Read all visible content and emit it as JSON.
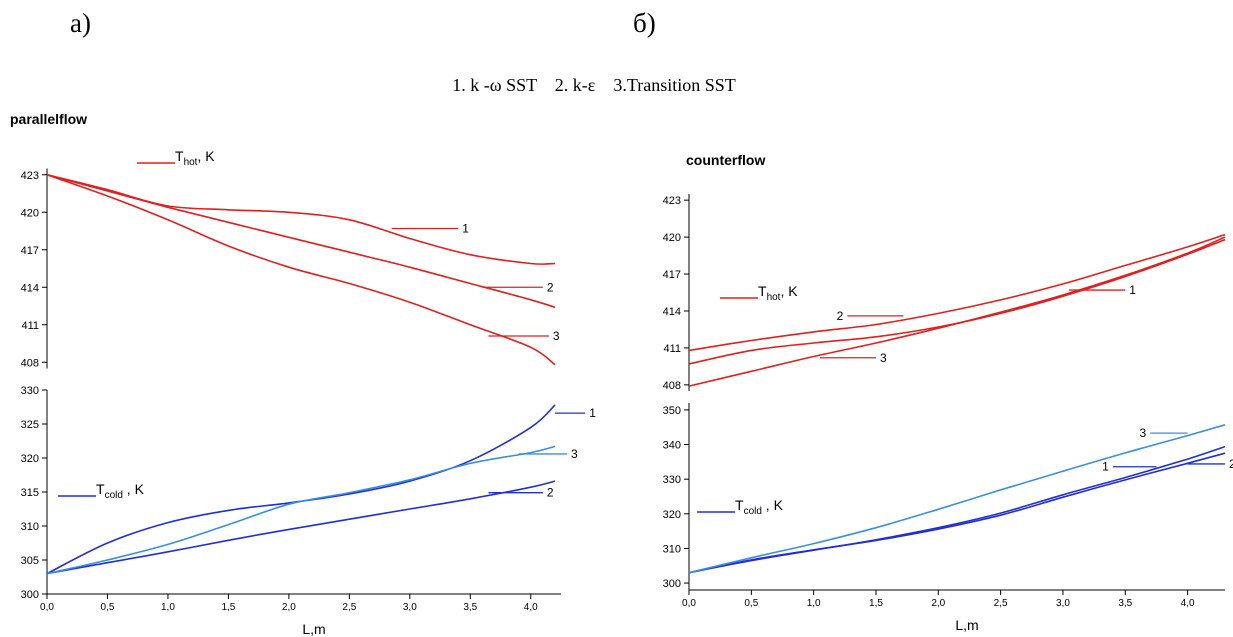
{
  "labels": {
    "left": "а)",
    "right": "б)"
  },
  "legend_line": "1. k -ω SST    2. k-ε    3.Transition SST",
  "colors": {
    "red": "#e0201f",
    "blue": "#1f2fd8",
    "lightblue": "#3a8ee0"
  },
  "chart_data": [
    {
      "type": "line",
      "title": "parallelflow",
      "xlabel": "L,m",
      "xlim": [
        0,
        4.25
      ],
      "xticks": [
        "0,0",
        "0,5",
        "1,0",
        "1,5",
        "2,0",
        "2,5",
        "3,0",
        "3,5",
        "4,0"
      ],
      "panels": [
        {
          "name": "hot",
          "label_main": "T",
          "label_sub": "hot",
          "label_unit": ", K",
          "ylim": [
            407.5,
            423.5
          ],
          "yticks": [
            408,
            411,
            414,
            417,
            420,
            423
          ],
          "color": "#e0201f",
          "series": [
            {
              "name": "1",
              "x": [
                0,
                0.5,
                1.0,
                1.5,
                2.0,
                2.5,
                3.0,
                3.5,
                4.0,
                4.2
              ],
              "y": [
                423,
                421.8,
                420.5,
                420.2,
                420.0,
                419.4,
                417.9,
                416.6,
                415.9,
                415.9
              ]
            },
            {
              "name": "2",
              "x": [
                0,
                0.5,
                1.0,
                1.5,
                2.0,
                2.5,
                3.0,
                3.5,
                4.0,
                4.2
              ],
              "y": [
                423,
                421.7,
                420.4,
                419.2,
                418.0,
                416.8,
                415.6,
                414.3,
                413.0,
                412.4
              ]
            },
            {
              "name": "3",
              "x": [
                0,
                0.5,
                1.0,
                1.5,
                2.0,
                2.5,
                3.0,
                3.5,
                4.0,
                4.2
              ],
              "y": [
                423,
                421.3,
                419.4,
                417.3,
                415.6,
                414.3,
                412.8,
                411.0,
                409.2,
                407.8
              ]
            }
          ],
          "markers": [
            {
              "name": "1",
              "x": 2.85,
              "y": 418.7,
              "dx": 0.55
            },
            {
              "name": "2",
              "x": 3.6,
              "y": 414.0,
              "dx": 0.5
            },
            {
              "name": "3",
              "x": 3.65,
              "y": 410.1,
              "dx": 0.5
            }
          ]
        },
        {
          "name": "cold",
          "label_main": "T",
          "label_sub": "cold",
          "label_unit": " , K",
          "ylim": [
            300,
            330
          ],
          "yticks": [
            300,
            305,
            310,
            315,
            320,
            325,
            330
          ],
          "color": "#1f2fd8",
          "series": [
            {
              "name": "1",
              "x": [
                0,
                0.5,
                1.0,
                1.5,
                2.0,
                2.5,
                3.0,
                3.5,
                4.0,
                4.2
              ],
              "y": [
                303,
                307.5,
                310.5,
                312.3,
                313.4,
                314.7,
                316.6,
                319.6,
                324.5,
                327.8
              ],
              "color": "#1f2fd8"
            },
            {
              "name": "2",
              "x": [
                0,
                0.5,
                1.0,
                1.5,
                2.0,
                2.5,
                3.0,
                3.5,
                4.0,
                4.2
              ],
              "y": [
                303,
                304.6,
                306.2,
                307.9,
                309.5,
                311.0,
                312.5,
                314.0,
                315.7,
                316.6
              ],
              "color": "#1f2fd8"
            },
            {
              "name": "3",
              "x": [
                0,
                0.5,
                1.0,
                1.5,
                2.0,
                2.5,
                3.0,
                3.5,
                4.0,
                4.2
              ],
              "y": [
                303,
                305.0,
                307.3,
                310.2,
                313.2,
                314.9,
                316.8,
                319.2,
                320.8,
                321.7
              ],
              "color": "#3a8ee0"
            }
          ],
          "markers": [
            {
              "name": "1",
              "x": 4.2,
              "y": 326.6,
              "dx": 0.25
            },
            {
              "name": "2",
              "x": 3.65,
              "y": 314.9,
              "dx": 0.45
            },
            {
              "name": "3",
              "x": 3.9,
              "y": 320.6,
              "dx": 0.4
            }
          ]
        }
      ]
    },
    {
      "type": "line",
      "title": "counterflow",
      "xlabel": "L,m",
      "xlim": [
        0,
        4.3
      ],
      "xticks": [
        "0,0",
        "0,5",
        "1,0",
        "1,5",
        "2,0",
        "2,5",
        "3,0",
        "3,5",
        "4,0"
      ],
      "panels": [
        {
          "name": "hot",
          "label_main": "T",
          "label_sub": "hot",
          "label_unit": ", K",
          "ylim": [
            407.5,
            423.5
          ],
          "yticks": [
            408,
            411,
            414,
            417,
            420,
            423
          ],
          "color": "#e0201f",
          "series": [
            {
              "name": "1",
              "x": [
                0,
                0.5,
                1.0,
                1.5,
                2.0,
                2.5,
                3.0,
                3.5,
                4.0,
                4.3
              ],
              "y": [
                409.7,
                410.8,
                411.4,
                411.9,
                412.7,
                413.8,
                415.2,
                416.8,
                418.6,
                419.8
              ]
            },
            {
              "name": "2",
              "x": [
                0,
                0.5,
                1.0,
                1.5,
                2.0,
                2.5,
                3.0,
                3.5,
                4.0,
                4.3
              ],
              "y": [
                410.8,
                411.6,
                412.3,
                412.9,
                413.8,
                414.9,
                416.2,
                417.7,
                419.2,
                420.2
              ]
            },
            {
              "name": "3",
              "x": [
                0,
                0.5,
                1.0,
                1.5,
                2.0,
                2.5,
                3.0,
                3.5,
                4.0,
                4.3
              ],
              "y": [
                407.9,
                409.1,
                410.3,
                411.4,
                412.6,
                413.9,
                415.3,
                416.9,
                418.7,
                420.0
              ]
            }
          ],
          "markers": [
            {
              "name": "1",
              "x": 3.05,
              "y": 415.7,
              "dx": 0.45
            },
            {
              "name": "2",
              "x": 1.72,
              "y": 413.6,
              "dx": -0.45
            },
            {
              "name": "3",
              "x": 1.05,
              "y": 410.2,
              "dx": 0.45
            }
          ]
        },
        {
          "name": "cold",
          "label_main": "T",
          "label_sub": "cold",
          "label_unit": " , K",
          "ylim": [
            298,
            352
          ],
          "yticks": [
            300,
            310,
            320,
            330,
            340,
            350
          ],
          "color": "#1f2fd8",
          "series": [
            {
              "name": "1",
              "x": [
                0,
                0.5,
                1.0,
                1.5,
                2.0,
                2.5,
                3.0,
                3.5,
                4.0,
                4.3
              ],
              "y": [
                303,
                306.7,
                309.6,
                312.3,
                315.6,
                319.6,
                324.8,
                329.8,
                334.6,
                337.5
              ],
              "color": "#1f2fd8"
            },
            {
              "name": "2",
              "x": [
                0,
                0.5,
                1.0,
                1.5,
                2.0,
                2.5,
                3.0,
                3.5,
                4.0,
                4.3
              ],
              "y": [
                303,
                306.5,
                309.5,
                312.5,
                316.0,
                320.2,
                325.5,
                330.5,
                335.8,
                339.4
              ],
              "color": "#1f2fd8"
            },
            {
              "name": "3",
              "x": [
                0,
                0.5,
                1.0,
                1.5,
                2.0,
                2.5,
                3.0,
                3.5,
                4.0,
                4.3
              ],
              "y": [
                303,
                307.3,
                311.4,
                316.0,
                321.3,
                326.9,
                332.3,
                337.6,
                342.6,
                345.7
              ],
              "color": "#3a8ee0"
            }
          ],
          "markers": [
            {
              "name": "1",
              "x": 3.75,
              "y": 333.6,
              "dx": -0.35
            },
            {
              "name": "2",
              "x": 4.0,
              "y": 334.4,
              "dx": 0.3
            },
            {
              "name": "3",
              "x": 4.0,
              "y": 343.3,
              "dx": -0.3
            }
          ]
        }
      ]
    }
  ]
}
